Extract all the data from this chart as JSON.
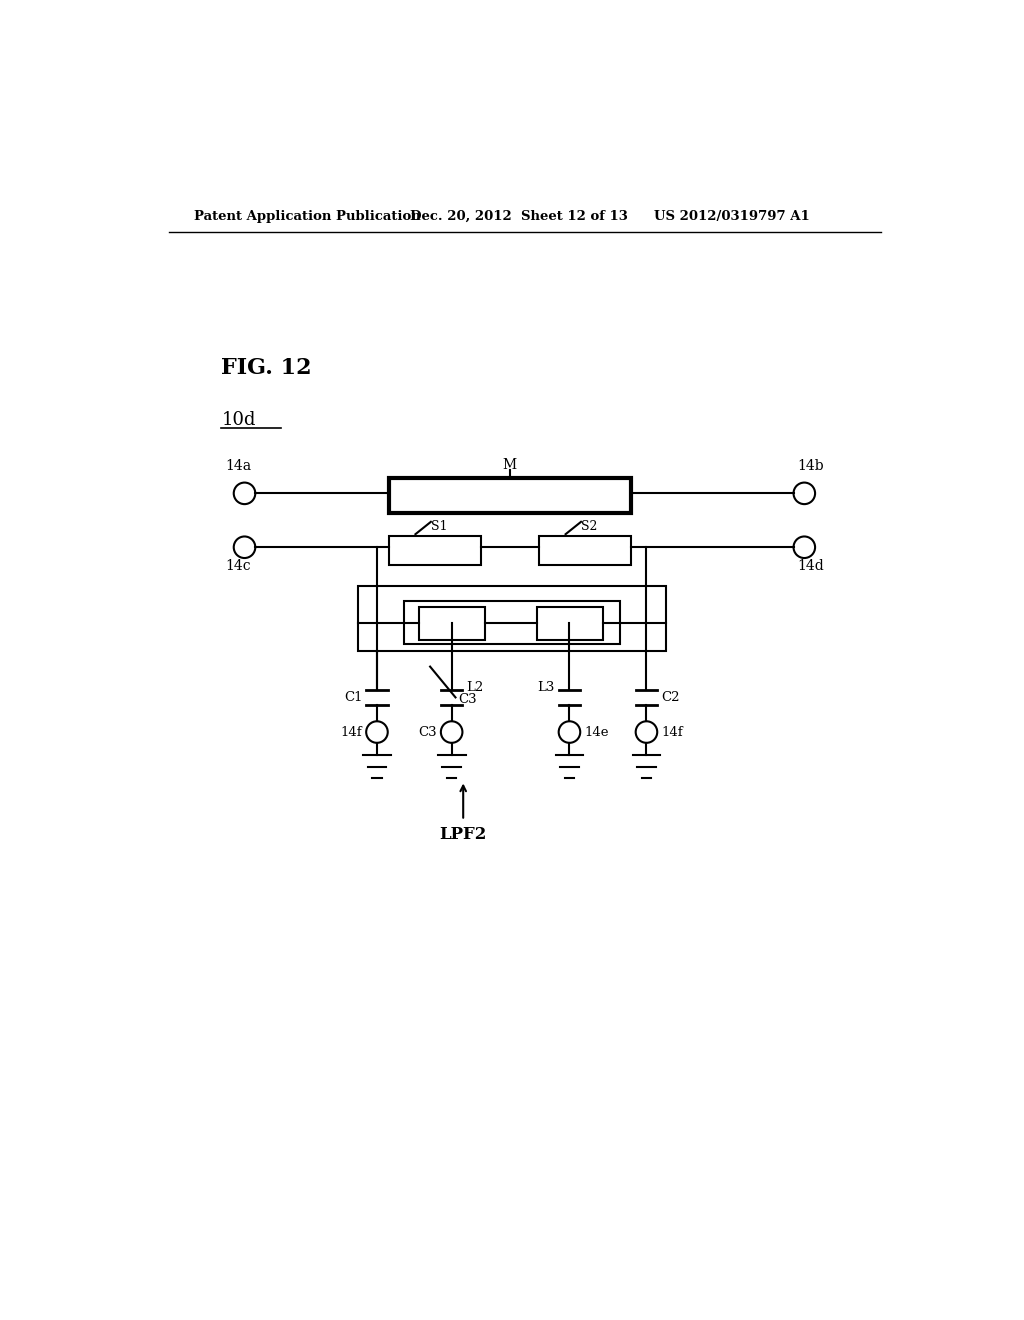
{
  "bg_color": "#ffffff",
  "header_left": "Patent Application Publication",
  "header_mid": "Dec. 20, 2012  Sheet 12 of 13",
  "header_right": "US 2012/0319797 A1",
  "fig_label": "FIG. 12",
  "ref_label": "10d"
}
